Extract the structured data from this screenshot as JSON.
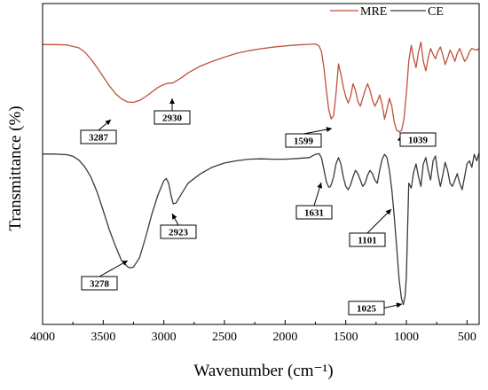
{
  "chart_data": {
    "type": "line",
    "title": "",
    "xlabel": "Wavenumber (cm⁻¹)",
    "ylabel": "Transmittance (%)",
    "xlim": [
      4000,
      400
    ],
    "ylim": [
      0,
      1
    ],
    "xticks": [
      4000,
      3500,
      3000,
      2500,
      2000,
      1500,
      1000,
      500
    ],
    "y_ticks_shown": false,
    "grid": false,
    "legend_placement": "top-right",
    "series": [
      {
        "name": "MRE",
        "color": "#c0513a",
        "x": [
          4000,
          3900,
          3800,
          3700,
          3650,
          3600,
          3550,
          3500,
          3450,
          3400,
          3350,
          3300,
          3250,
          3200,
          3150,
          3100,
          3050,
          3000,
          2960,
          2930,
          2900,
          2850,
          2800,
          2700,
          2600,
          2500,
          2400,
          2300,
          2200,
          2100,
          2000,
          1900,
          1800,
          1750,
          1720,
          1700,
          1680,
          1660,
          1640,
          1620,
          1599,
          1580,
          1560,
          1540,
          1520,
          1500,
          1480,
          1460,
          1440,
          1420,
          1400,
          1380,
          1360,
          1340,
          1320,
          1300,
          1280,
          1260,
          1240,
          1220,
          1200,
          1180,
          1160,
          1140,
          1120,
          1100,
          1080,
          1060,
          1039,
          1020,
          1000,
          980,
          960,
          940,
          920,
          900,
          880,
          860,
          840,
          820,
          800,
          780,
          760,
          740,
          720,
          700,
          680,
          660,
          640,
          620,
          600,
          580,
          560,
          540,
          520,
          500,
          480,
          460,
          440,
          420,
          400
        ],
        "y": [
          0.872,
          0.872,
          0.871,
          0.862,
          0.848,
          0.826,
          0.8,
          0.772,
          0.744,
          0.72,
          0.703,
          0.693,
          0.692,
          0.698,
          0.71,
          0.724,
          0.738,
          0.748,
          0.752,
          0.752,
          0.758,
          0.77,
          0.784,
          0.805,
          0.82,
          0.833,
          0.845,
          0.853,
          0.859,
          0.864,
          0.868,
          0.871,
          0.873,
          0.874,
          0.868,
          0.85,
          0.8,
          0.73,
          0.67,
          0.64,
          0.652,
          0.72,
          0.812,
          0.78,
          0.74,
          0.71,
          0.69,
          0.71,
          0.75,
          0.73,
          0.695,
          0.68,
          0.705,
          0.73,
          0.75,
          0.73,
          0.7,
          0.68,
          0.695,
          0.715,
          0.685,
          0.64,
          0.67,
          0.705,
          0.68,
          0.63,
          0.605,
          0.6,
          0.605,
          0.64,
          0.72,
          0.82,
          0.87,
          0.83,
          0.8,
          0.85,
          0.88,
          0.82,
          0.79,
          0.83,
          0.86,
          0.842,
          0.828,
          0.85,
          0.865,
          0.84,
          0.81,
          0.83,
          0.855,
          0.84,
          0.82,
          0.845,
          0.86,
          0.84,
          0.82,
          0.83,
          0.85,
          0.86,
          0.857,
          0.855,
          0.86
        ]
      },
      {
        "name": "CE",
        "color": "#3a3a3a",
        "x": [
          4000,
          3900,
          3800,
          3750,
          3700,
          3650,
          3600,
          3550,
          3500,
          3450,
          3400,
          3350,
          3300,
          3278,
          3250,
          3200,
          3150,
          3100,
          3050,
          3000,
          2980,
          2960,
          2940,
          2923,
          2900,
          2850,
          2800,
          2700,
          2600,
          2500,
          2400,
          2300,
          2200,
          2100,
          2000,
          1900,
          1800,
          1750,
          1720,
          1700,
          1680,
          1660,
          1640,
          1631,
          1620,
          1600,
          1580,
          1560,
          1540,
          1520,
          1500,
          1480,
          1460,
          1440,
          1420,
          1400,
          1380,
          1360,
          1340,
          1320,
          1300,
          1280,
          1260,
          1240,
          1220,
          1200,
          1180,
          1160,
          1140,
          1120,
          1101,
          1080,
          1060,
          1040,
          1025,
          1010,
          1000,
          990,
          980,
          960,
          940,
          920,
          900,
          880,
          860,
          840,
          820,
          800,
          780,
          760,
          740,
          720,
          700,
          680,
          660,
          640,
          620,
          600,
          580,
          560,
          540,
          520,
          500,
          480,
          460,
          440,
          420,
          400
        ],
        "y": [
          0.531,
          0.531,
          0.529,
          0.524,
          0.512,
          0.49,
          0.458,
          0.412,
          0.355,
          0.295,
          0.245,
          0.2,
          0.18,
          0.176,
          0.179,
          0.208,
          0.272,
          0.342,
          0.402,
          0.448,
          0.455,
          0.44,
          0.4,
          0.376,
          0.378,
          0.41,
          0.44,
          0.469,
          0.49,
          0.503,
          0.51,
          0.515,
          0.516,
          0.515,
          0.515,
          0.517,
          0.52,
          0.53,
          0.532,
          0.52,
          0.482,
          0.445,
          0.428,
          0.428,
          0.435,
          0.46,
          0.5,
          0.52,
          0.5,
          0.46,
          0.43,
          0.42,
          0.435,
          0.46,
          0.48,
          0.47,
          0.45,
          0.43,
          0.44,
          0.465,
          0.48,
          0.47,
          0.45,
          0.44,
          0.48,
          0.515,
          0.53,
          0.52,
          0.48,
          0.42,
          0.34,
          0.24,
          0.14,
          0.08,
          0.062,
          0.09,
          0.15,
          0.3,
          0.44,
          0.425,
          0.475,
          0.5,
          0.46,
          0.43,
          0.5,
          0.52,
          0.48,
          0.45,
          0.51,
          0.525,
          0.47,
          0.43,
          0.465,
          0.505,
          0.48,
          0.44,
          0.43,
          0.45,
          0.47,
          0.44,
          0.42,
          0.46,
          0.5,
          0.51,
          0.49,
          0.53,
          0.51,
          0.535
        ]
      }
    ],
    "annotations": [
      {
        "label": "3287",
        "series": "MRE",
        "x": 3287
      },
      {
        "label": "2930",
        "series": "MRE",
        "x": 2930
      },
      {
        "label": "1599",
        "series": "MRE",
        "x": 1599
      },
      {
        "label": "1039",
        "series": "MRE",
        "x": 1039
      },
      {
        "label": "3278",
        "series": "CE",
        "x": 3278
      },
      {
        "label": "2923",
        "series": "CE",
        "x": 2923
      },
      {
        "label": "1631",
        "series": "CE",
        "x": 1631
      },
      {
        "label": "1101",
        "series": "CE",
        "x": 1101
      },
      {
        "label": "1025",
        "series": "CE",
        "x": 1025
      }
    ]
  }
}
